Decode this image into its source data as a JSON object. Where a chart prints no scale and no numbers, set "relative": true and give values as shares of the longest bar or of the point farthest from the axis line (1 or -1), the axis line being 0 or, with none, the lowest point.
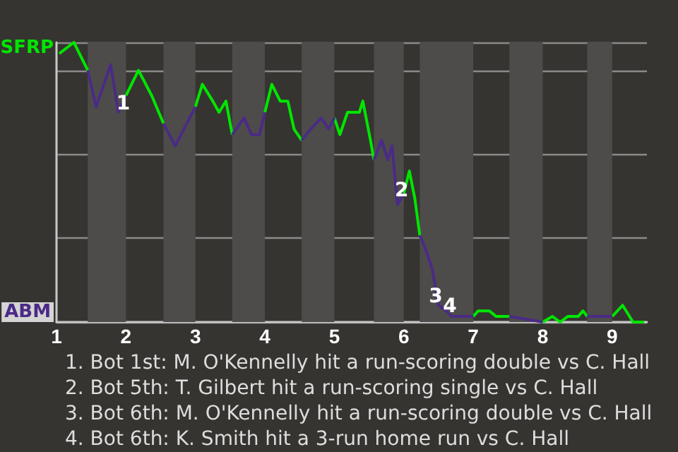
{
  "chart_data": {
    "type": "line",
    "relative": true,
    "xlim": [
      1,
      9.5
    ],
    "xticks": [
      1,
      2,
      3,
      4,
      5,
      6,
      7,
      8,
      9
    ],
    "grid": "y",
    "marker": "none",
    "series": [
      {
        "name": "SFRP",
        "color": "#00e600",
        "x": [
          1.04,
          1.25,
          1.45,
          1.7,
          2,
          2.18,
          2.37,
          2.54,
          2.8,
          3,
          3.1,
          3.25,
          3.34,
          3.44,
          3.53,
          3.8,
          4,
          4.1,
          4.22,
          4.33,
          4.42,
          4.53,
          4.8,
          5,
          5.08,
          5.19,
          5.36,
          5.41,
          5.52,
          5.57,
          5.8,
          6,
          6.08,
          6.16,
          6.23,
          6.6,
          7,
          7.07,
          7.15,
          7.23,
          7.33,
          7.52,
          7.8,
          8,
          8.14,
          8.25,
          8.36,
          8.51,
          8.58,
          8.64,
          8.8,
          9,
          9.15,
          9.3,
          9.46
        ],
        "values": [
          0.96,
          1,
          0.9,
          null,
          0.81,
          0.9,
          0.81,
          0.71,
          null,
          0.77,
          0.85,
          0.79,
          0.75,
          0.79,
          0.67,
          null,
          0.75,
          0.85,
          0.79,
          0.79,
          0.69,
          0.65,
          null,
          0.73,
          0.67,
          0.75,
          0.75,
          0.79,
          0.65,
          0.58,
          null,
          0.46,
          0.54,
          0.44,
          0.31,
          null,
          0.02,
          0.04,
          0.04,
          0.04,
          0.02,
          0.02,
          null,
          0,
          0.02,
          0,
          0.02,
          0.02,
          0.04,
          0.02,
          null,
          0.02,
          0.06,
          0,
          0
        ]
      },
      {
        "name": "ABM",
        "color": "#4b2a86",
        "x": [
          1.45,
          1.57,
          1.78,
          1.89,
          2,
          2.3,
          2.54,
          2.71,
          3,
          3.3,
          3.53,
          3.7,
          3.81,
          3.92,
          4,
          4.3,
          4.53,
          4.66,
          4.81,
          4.92,
          5,
          5.3,
          5.57,
          5.68,
          5.77,
          5.83,
          5.91,
          6,
          6.1,
          6.23,
          6.3,
          6.41,
          6.5,
          6.61,
          6.69,
          7,
          7.3,
          7.52,
          8,
          8.3,
          8.64,
          9
        ],
        "values": [
          0.9,
          0.77,
          0.92,
          0.75,
          0.81,
          null,
          0.71,
          0.63,
          0.77,
          null,
          0.67,
          0.73,
          0.67,
          0.67,
          0.75,
          null,
          0.65,
          0.69,
          0.73,
          0.69,
          0.73,
          null,
          0.58,
          0.65,
          0.58,
          0.63,
          0.42,
          0.46,
          null,
          0.31,
          0.27,
          0.19,
          0.06,
          0.04,
          0.02,
          0.02,
          null,
          0.02,
          0,
          null,
          0.02,
          0.02
        ]
      }
    ],
    "bands": [
      {
        "axis": "x",
        "from": 1.45,
        "to": 2,
        "color": "#4d4c4a"
      },
      {
        "axis": "x",
        "from": 2.54,
        "to": 3,
        "color": "#4d4c4a"
      },
      {
        "axis": "x",
        "from": 3.53,
        "to": 4,
        "color": "#4d4c4a"
      },
      {
        "axis": "x",
        "from": 4.53,
        "to": 5,
        "color": "#4d4c4a"
      },
      {
        "axis": "x",
        "from": 5.57,
        "to": 6,
        "color": "#4d4c4a"
      },
      {
        "axis": "x",
        "from": 6.23,
        "to": 7,
        "color": "#4d4c4a"
      },
      {
        "axis": "x",
        "from": 7.52,
        "to": 8,
        "color": "#4d4c4a"
      },
      {
        "axis": "x",
        "from": 8.64,
        "to": 9,
        "color": "#4d4c4a"
      }
    ],
    "annotations": [
      {
        "text": "1",
        "x": 1.96,
        "y": 0.77
      },
      {
        "text": "2",
        "x": 5.97,
        "y": 0.46
      },
      {
        "text": "3",
        "x": 6.46,
        "y": 0.08
      },
      {
        "text": "4",
        "x": 6.54,
        "y": 0
      },
      "1. Bot 1st: M. O'Kennelly hit a run-scoring double vs C. Hall",
      "2. Bot 5th: T. Gilbert hit a run-scoring single vs C. Hall",
      "3. Bot 6th: M. O'Kennelly hit a run-scoring double vs C. Hall",
      "4. Bot 6th: K. Smith hit a 3-run home run vs C. Hall"
    ]
  }
}
